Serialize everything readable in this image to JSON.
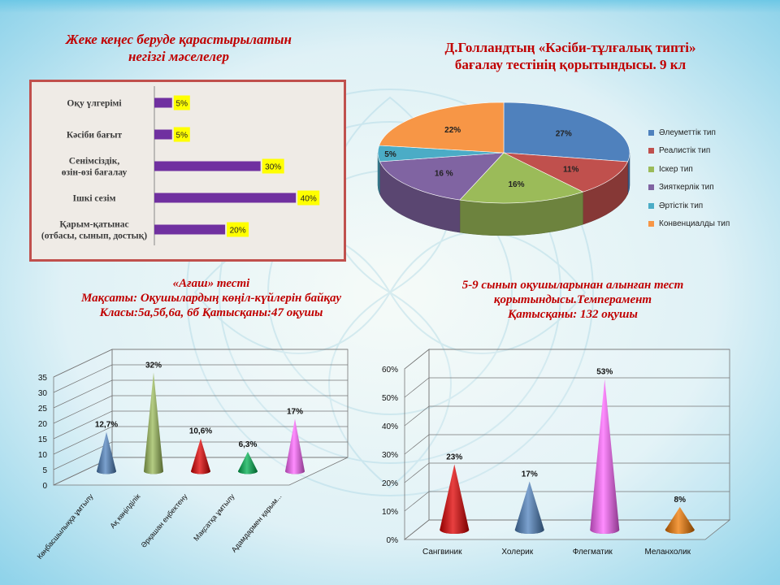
{
  "texts": {
    "title1_line1": "Жеке  кеңес  беруде қарастырылатын",
    "title1_line2": "негізгі  мәселелер",
    "title2_line1": "Д.Голландтың   «Кәсіби-тұлғалық типті»",
    "title2_line2": "бағалау  тестінің қорытындысы. 9 кл",
    "title3_line1": "«Ағаш» тесті",
    "title3_line2": "Мақсаты:  Оқушылардың   көңіл-күйлерін  байқау",
    "title3_line3": "Класы:5а,5б,6а, 6б       Қатысқаны:47 оқушы",
    "title4_line1": "5-9 сынып    оқушыларынан  алынған тест",
    "title4_line2": "қорытындысы.Темперамент",
    "title4_line3": "Қатысқаны: 132 оқушы"
  },
  "colors": {
    "title": "#c00000",
    "bar": "#7030a0",
    "label_bg": "#ffff00",
    "panel_border": "#c0504d"
  },
  "chart_data": [
    {
      "type": "bar",
      "orientation": "horizontal",
      "categories": [
        [
          "Оқу үлгерімі"
        ],
        [
          "Кәсіби бағыт"
        ],
        [
          "Сенімсіздік,",
          "өзін-өзі бағалау"
        ],
        [
          "Ішкі сезім"
        ],
        [
          "Қарым-қатынас",
          "(отбасы, сынып, достық)"
        ]
      ],
      "values": [
        5,
        5,
        30,
        40,
        20
      ],
      "data_labels": [
        "5%",
        "5%",
        "30%",
        "40%",
        "20%"
      ],
      "xlim": [
        0,
        45
      ]
    },
    {
      "type": "pie",
      "legend": "right",
      "slices": [
        {
          "name": "Әлеуметтік тип",
          "value": 27,
          "label": "27%",
          "color": "#4f81bd"
        },
        {
          "name": "Реалистік тип",
          "value": 11,
          "label": "11%",
          "color": "#c0504d"
        },
        {
          "name": "Іскер тип",
          "value": 16,
          "label": "16%",
          "color": "#9bbb59"
        },
        {
          "name": "Зияткерлік тип",
          "value": 16,
          "label": "16  %",
          "color": "#8064a2"
        },
        {
          "name": "Әртістік тип",
          "value": 5,
          "label": "5%",
          "color": "#4bacc6"
        },
        {
          "name": "Конвенциалды тип",
          "value": 22,
          "label": "22%",
          "color": "#f79646"
        }
      ]
    },
    {
      "type": "bar",
      "shape": "cone",
      "categories": [
        "Көңбасшылыққа ұмтылу",
        "Ақ көңілділік",
        "Әрқашан еңбектену",
        "Мақсатқа ұмтылу",
        "Адамдармен қарым..."
      ],
      "values": [
        12.7,
        32,
        10.6,
        6.3,
        17
      ],
      "data_labels": [
        "12,7%",
        "32%",
        "10,6%",
        "6,3%",
        "17%"
      ],
      "colors": [
        "#4f81bd",
        "#9bbb59",
        "#e00000",
        "#00b050",
        "#ff66ff"
      ],
      "yticks": [
        "0",
        "5",
        "10",
        "15",
        "20",
        "25",
        "30",
        "35"
      ],
      "ylim": [
        0,
        35
      ]
    },
    {
      "type": "bar",
      "shape": "cone",
      "categories": [
        "Сангвиник",
        "Холерик",
        "Флегматик",
        "Меланхолик"
      ],
      "values": [
        23,
        17,
        53,
        8
      ],
      "data_labels": [
        "23%",
        "17%",
        "53%",
        "8%"
      ],
      "colors": [
        "#e00000",
        "#4f81bd",
        "#ff66ff",
        "#f07800"
      ],
      "yticks": [
        "0%",
        "10%",
        "20%",
        "30%",
        "40%",
        "50%",
        "60%"
      ],
      "ylim": [
        0,
        60
      ]
    }
  ]
}
